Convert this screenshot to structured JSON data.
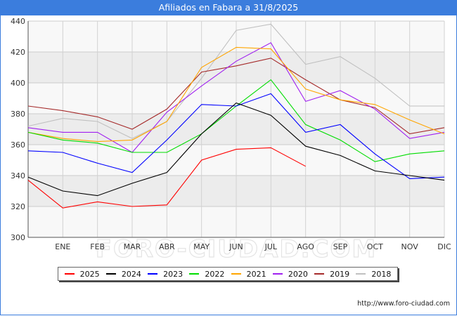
{
  "header": {
    "title": "Afiliados en Fabara a 31/8/2025"
  },
  "footer": {
    "url": "http://www.foro-ciudad.com"
  },
  "watermark": "FORO-CIUDAD.COM",
  "chart_data": {
    "type": "line",
    "title": "Afiliados en Fabara a 31/8/2025",
    "xlabel": "",
    "ylabel": "",
    "categories": [
      "",
      "ENE",
      "FEB",
      "MAR",
      "ABR",
      "MAY",
      "JUN",
      "JUL",
      "AGO",
      "SEP",
      "OCT",
      "NOV",
      "DIC"
    ],
    "ylim": [
      300,
      440
    ],
    "yticks": [
      300,
      320,
      340,
      360,
      380,
      400,
      420,
      440
    ],
    "grid": true,
    "legend_position": "bottom",
    "series": [
      {
        "name": "2025",
        "color": "#ff0000",
        "values": [
          337,
          319,
          323,
          320,
          321,
          350,
          357,
          358,
          346,
          null,
          null,
          null,
          null
        ]
      },
      {
        "name": "2024",
        "color": "#000000",
        "values": [
          339,
          330,
          327,
          335,
          342,
          367,
          387,
          379,
          359,
          353,
          343,
          340,
          337
        ]
      },
      {
        "name": "2023",
        "color": "#0000ff",
        "values": [
          356,
          355,
          348,
          342,
          363,
          386,
          385,
          393,
          368,
          373,
          354,
          338,
          339
        ]
      },
      {
        "name": "2022",
        "color": "#00dd00",
        "values": [
          368,
          363,
          361,
          355,
          355,
          367,
          385,
          402,
          373,
          363,
          349,
          354,
          356
        ]
      },
      {
        "name": "2021",
        "color": "#ffa500",
        "values": [
          368,
          364,
          362,
          363,
          375,
          410,
          423,
          422,
          396,
          389,
          386,
          376,
          367
        ]
      },
      {
        "name": "2020",
        "color": "#a020f0",
        "values": [
          371,
          368,
          368,
          355,
          381,
          398,
          414,
          426,
          388,
          395,
          383,
          364,
          368
        ]
      },
      {
        "name": "2019",
        "color": "#a52a2a",
        "values": [
          385,
          382,
          378,
          370,
          383,
          407,
          411,
          416,
          402,
          389,
          384,
          367,
          371
        ]
      },
      {
        "name": "2018",
        "color": "#c0c0c0",
        "values": [
          372,
          377,
          375,
          364,
          375,
          403,
          434,
          438,
          412,
          417,
          403,
          385,
          385
        ]
      }
    ]
  }
}
